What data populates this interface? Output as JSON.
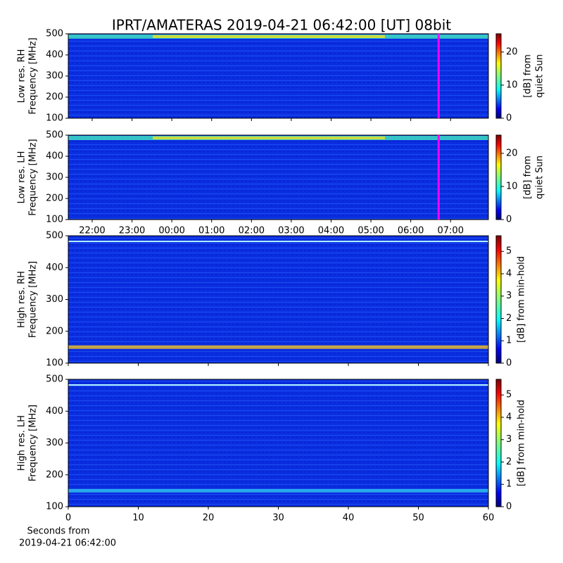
{
  "chart_data": [
    {
      "type": "heatmap",
      "title": "IPRT/AMATERAS 2019-04-21 06:42:00 [UT]   08bit",
      "ylabel": [
        "Low res. RH",
        "Frequency [MHz]"
      ],
      "ylim": [
        100,
        500
      ],
      "yticks": [
        100,
        200,
        300,
        400,
        500
      ],
      "xlim": [
        21.4,
        31.95
      ],
      "xticks": [
        22,
        23,
        24,
        25,
        26,
        27,
        28,
        29,
        30,
        31
      ],
      "xticklabels": false,
      "marker_x": 30.7,
      "marker_color": "#ff00ff",
      "colorbar_label": [
        "[dB] from",
        "quiet Sun"
      ],
      "clim": [
        0,
        25.5
      ],
      "cticks": [
        0,
        10,
        20
      ]
    },
    {
      "type": "heatmap",
      "ylabel": [
        "Low res. LH",
        "Frequency [MHz]"
      ],
      "ylim": [
        100,
        500
      ],
      "yticks": [
        100,
        200,
        300,
        400,
        500
      ],
      "xlim": [
        21.4,
        31.95
      ],
      "xticks": [
        {
          "value": 22,
          "label": "22:00"
        },
        {
          "value": 23,
          "label": "23:00"
        },
        {
          "value": 24,
          "label": "00:00"
        },
        {
          "value": 25,
          "label": "01:00"
        },
        {
          "value": 26,
          "label": "02:00"
        },
        {
          "value": 27,
          "label": "03:00"
        },
        {
          "value": 28,
          "label": "04:00"
        },
        {
          "value": 29,
          "label": "05:00"
        },
        {
          "value": 30,
          "label": "06:00"
        },
        {
          "value": 31,
          "label": "07:00"
        }
      ],
      "marker_x": 30.7,
      "marker_color": "#ff00ff",
      "colorbar_label": [
        "[dB] from",
        "quiet Sun"
      ],
      "clim": [
        0,
        25.5
      ],
      "cticks": [
        0,
        10,
        20
      ]
    },
    {
      "type": "heatmap",
      "ylabel": [
        "High res. RH",
        "Frequency [MHz]"
      ],
      "ylim": [
        100,
        500
      ],
      "yticks": [
        100,
        200,
        300,
        400,
        500
      ],
      "xlim": [
        0,
        60
      ],
      "xticks": [
        0,
        10,
        20,
        30,
        40,
        50,
        60
      ],
      "xticklabels": false,
      "colorbar_label": [
        "[dB] from min-hold"
      ],
      "clim": [
        0,
        5.7
      ],
      "cticks": [
        0,
        1,
        2,
        3,
        4,
        5
      ]
    },
    {
      "type": "heatmap",
      "ylabel": [
        "High res. LH",
        "Frequency [MHz]"
      ],
      "ylim": [
        100,
        500
      ],
      "yticks": [
        100,
        200,
        300,
        400,
        500
      ],
      "xlim": [
        0,
        60
      ],
      "xticks": [
        0,
        10,
        20,
        30,
        40,
        50,
        60
      ],
      "xlabel": [
        "Seconds from",
        "2019-04-21 06:42:00"
      ],
      "colorbar_label": [
        "[dB] from min-hold"
      ],
      "clim": [
        0,
        5.7
      ],
      "cticks": [
        0,
        1,
        2,
        3,
        4,
        5
      ]
    }
  ]
}
